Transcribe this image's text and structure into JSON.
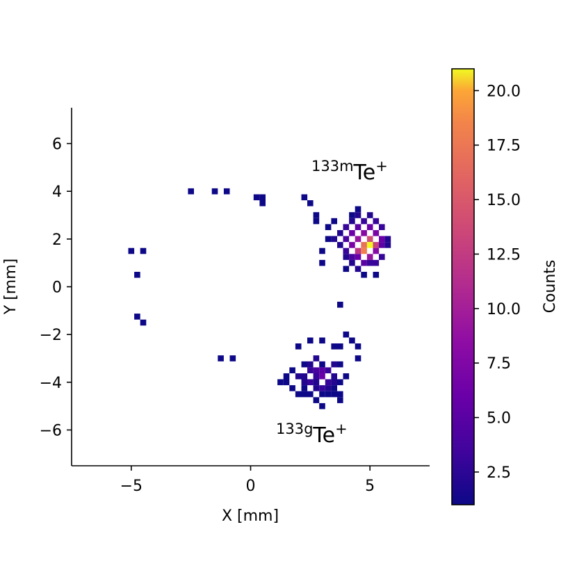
{
  "chart_data": {
    "type": "heatmap",
    "title": "",
    "xlabel": "X [mm]",
    "ylabel": "Y [mm]",
    "xlim": [
      -7.5,
      7.5
    ],
    "ylim": [
      -7.5,
      7.5
    ],
    "bin_size_mm": 0.5,
    "xticks": [
      -5,
      0,
      5
    ],
    "xtick_labels": [
      "−5",
      "0",
      "5"
    ],
    "yticks": [
      -6,
      -4,
      -2,
      0,
      2,
      4,
      6
    ],
    "ytick_labels": [
      "−6",
      "−4",
      "−2",
      "0",
      "2",
      "4",
      "6"
    ],
    "grid": false,
    "colormap": "plasma",
    "colorbar": {
      "label": "Counts",
      "range": [
        1,
        21
      ],
      "ticks": [
        2.5,
        5.0,
        7.5,
        10.0,
        12.5,
        15.0,
        17.5,
        20.0
      ],
      "tick_labels": [
        "2.5",
        "5.0",
        "7.5",
        "10.0",
        "12.5",
        "15.0",
        "17.5",
        "20.0"
      ]
    },
    "annotations": [
      {
        "id": "annot-133m",
        "mass": "133",
        "state": "m",
        "element": "Te",
        "charge": "+",
        "x": 2.4,
        "y": 4.7
      },
      {
        "id": "annot-133g",
        "mass": "133",
        "state": "g",
        "element": "Te",
        "charge": "+",
        "x": 1.0,
        "y": -6.3
      }
    ],
    "bins": [
      {
        "x": -2.5,
        "y": 4.0,
        "count": 1
      },
      {
        "x": -1.5,
        "y": 4.0,
        "count": 1
      },
      {
        "x": -1.0,
        "y": 4.0,
        "count": 1
      },
      {
        "x": 0.25,
        "y": 3.75,
        "count": 1
      },
      {
        "x": 0.5,
        "y": 3.75,
        "count": 1
      },
      {
        "x": 0.5,
        "y": 3.5,
        "count": 1
      },
      {
        "x": 2.25,
        "y": 3.75,
        "count": 1
      },
      {
        "x": 2.5,
        "y": 3.5,
        "count": 1
      },
      {
        "x": 2.75,
        "y": 3.0,
        "count": 1
      },
      {
        "x": 2.75,
        "y": 2.75,
        "count": 1
      },
      {
        "x": -5.0,
        "y": 1.5,
        "count": 1
      },
      {
        "x": -4.5,
        "y": 1.5,
        "count": 1
      },
      {
        "x": -4.75,
        "y": 0.5,
        "count": 1
      },
      {
        "x": -4.75,
        "y": -1.25,
        "count": 1
      },
      {
        "x": -4.5,
        "y": -1.5,
        "count": 1
      },
      {
        "x": -1.25,
        "y": -3.0,
        "count": 1
      },
      {
        "x": -0.75,
        "y": -3.0,
        "count": 1
      },
      {
        "x": 3.75,
        "y": -0.75,
        "count": 1
      },
      {
        "x": 3.25,
        "y": 2.5,
        "count": 1
      },
      {
        "x": 3.25,
        "y": 2.0,
        "count": 1
      },
      {
        "x": 3.0,
        "y": 1.5,
        "count": 1
      },
      {
        "x": 3.0,
        "y": 1.0,
        "count": 1
      },
      {
        "x": 3.5,
        "y": 2.75,
        "count": 1
      },
      {
        "x": 3.5,
        "y": 2.0,
        "count": 2
      },
      {
        "x": 3.75,
        "y": 2.25,
        "count": 2
      },
      {
        "x": 3.75,
        "y": 1.75,
        "count": 2
      },
      {
        "x": 4.0,
        "y": 2.5,
        "count": 3
      },
      {
        "x": 4.0,
        "y": 2.0,
        "count": 4
      },
      {
        "x": 4.0,
        "y": 1.5,
        "count": 3
      },
      {
        "x": 4.0,
        "y": 1.25,
        "count": 2
      },
      {
        "x": 4.0,
        "y": 0.75,
        "count": 1
      },
      {
        "x": 4.25,
        "y": 2.75,
        "count": 2
      },
      {
        "x": 4.25,
        "y": 2.25,
        "count": 6
      },
      {
        "x": 4.25,
        "y": 1.75,
        "count": 7
      },
      {
        "x": 4.25,
        "y": 1.25,
        "count": 4
      },
      {
        "x": 4.25,
        "y": 1.0,
        "count": 2
      },
      {
        "x": 4.5,
        "y": 3.25,
        "count": 1
      },
      {
        "x": 4.5,
        "y": 3.0,
        "count": 2
      },
      {
        "x": 4.5,
        "y": 2.5,
        "count": 5
      },
      {
        "x": 4.5,
        "y": 2.0,
        "count": 9
      },
      {
        "x": 4.5,
        "y": 1.5,
        "count": 12
      },
      {
        "x": 4.5,
        "y": 1.25,
        "count": 6
      },
      {
        "x": 4.5,
        "y": 0.75,
        "count": 2
      },
      {
        "x": 4.75,
        "y": 2.75,
        "count": 3
      },
      {
        "x": 4.75,
        "y": 2.25,
        "count": 8
      },
      {
        "x": 4.75,
        "y": 1.75,
        "count": 17
      },
      {
        "x": 4.75,
        "y": 1.5,
        "count": 18
      },
      {
        "x": 4.75,
        "y": 1.0,
        "count": 5
      },
      {
        "x": 4.75,
        "y": 0.5,
        "count": 1
      },
      {
        "x": 5.0,
        "y": 3.0,
        "count": 2
      },
      {
        "x": 5.0,
        "y": 2.5,
        "count": 6
      },
      {
        "x": 5.0,
        "y": 2.0,
        "count": 14
      },
      {
        "x": 5.0,
        "y": 1.75,
        "count": 21
      },
      {
        "x": 5.0,
        "y": 1.25,
        "count": 9
      },
      {
        "x": 5.0,
        "y": 1.0,
        "count": 3
      },
      {
        "x": 5.25,
        "y": 2.75,
        "count": 3
      },
      {
        "x": 5.25,
        "y": 2.25,
        "count": 7
      },
      {
        "x": 5.25,
        "y": 1.75,
        "count": 13
      },
      {
        "x": 5.25,
        "y": 1.5,
        "count": 8
      },
      {
        "x": 5.25,
        "y": 1.0,
        "count": 3
      },
      {
        "x": 5.25,
        "y": 0.5,
        "count": 1
      },
      {
        "x": 5.5,
        "y": 2.5,
        "count": 3
      },
      {
        "x": 5.5,
        "y": 2.0,
        "count": 6
      },
      {
        "x": 5.5,
        "y": 1.75,
        "count": 5
      },
      {
        "x": 5.5,
        "y": 1.25,
        "count": 3
      },
      {
        "x": 5.75,
        "y": 2.0,
        "count": 2
      },
      {
        "x": 5.75,
        "y": 1.75,
        "count": 2
      },
      {
        "x": 4.25,
        "y": 3.0,
        "count": 1
      },
      {
        "x": 2.0,
        "y": -2.5,
        "count": 1
      },
      {
        "x": 2.5,
        "y": -2.25,
        "count": 1
      },
      {
        "x": 3.0,
        "y": -2.25,
        "count": 1
      },
      {
        "x": 3.5,
        "y": -2.5,
        "count": 1
      },
      {
        "x": 4.0,
        "y": -2.0,
        "count": 1
      },
      {
        "x": 4.25,
        "y": -2.25,
        "count": 1
      },
      {
        "x": 4.5,
        "y": -2.5,
        "count": 1
      },
      {
        "x": 3.75,
        "y": -2.5,
        "count": 1
      },
      {
        "x": 2.75,
        "y": -3.0,
        "count": 2
      },
      {
        "x": 2.25,
        "y": -3.25,
        "count": 1
      },
      {
        "x": 2.5,
        "y": -3.25,
        "count": 2
      },
      {
        "x": 3.0,
        "y": -3.25,
        "count": 1
      },
      {
        "x": 3.5,
        "y": -3.25,
        "count": 2
      },
      {
        "x": 4.5,
        "y": -3.0,
        "count": 1
      },
      {
        "x": 1.75,
        "y": -3.5,
        "count": 1
      },
      {
        "x": 2.5,
        "y": -3.5,
        "count": 3
      },
      {
        "x": 2.75,
        "y": -3.5,
        "count": 4
      },
      {
        "x": 3.0,
        "y": -3.5,
        "count": 5
      },
      {
        "x": 3.25,
        "y": -3.5,
        "count": 3
      },
      {
        "x": 3.75,
        "y": -3.25,
        "count": 1
      },
      {
        "x": 1.5,
        "y": -3.75,
        "count": 1
      },
      {
        "x": 2.0,
        "y": -3.75,
        "count": 2
      },
      {
        "x": 2.25,
        "y": -3.75,
        "count": 2
      },
      {
        "x": 2.75,
        "y": -3.75,
        "count": 3
      },
      {
        "x": 3.0,
        "y": -3.75,
        "count": 6
      },
      {
        "x": 3.5,
        "y": -3.75,
        "count": 2
      },
      {
        "x": 4.0,
        "y": -3.75,
        "count": 1
      },
      {
        "x": 1.25,
        "y": -4.0,
        "count": 1
      },
      {
        "x": 1.5,
        "y": -4.0,
        "count": 1
      },
      {
        "x": 2.25,
        "y": -4.0,
        "count": 2
      },
      {
        "x": 2.5,
        "y": -4.0,
        "count": 3
      },
      {
        "x": 2.75,
        "y": -4.0,
        "count": 2
      },
      {
        "x": 3.25,
        "y": -4.0,
        "count": 3
      },
      {
        "x": 3.5,
        "y": -4.0,
        "count": 2
      },
      {
        "x": 3.75,
        "y": -4.0,
        "count": 1
      },
      {
        "x": 1.75,
        "y": -4.25,
        "count": 1
      },
      {
        "x": 2.25,
        "y": -4.25,
        "count": 1
      },
      {
        "x": 2.75,
        "y": -4.25,
        "count": 2
      },
      {
        "x": 3.0,
        "y": -4.25,
        "count": 3
      },
      {
        "x": 3.25,
        "y": -4.25,
        "count": 2
      },
      {
        "x": 3.5,
        "y": -4.25,
        "count": 1
      },
      {
        "x": 2.0,
        "y": -4.5,
        "count": 1
      },
      {
        "x": 2.25,
        "y": -4.5,
        "count": 1
      },
      {
        "x": 2.5,
        "y": -4.5,
        "count": 1
      },
      {
        "x": 3.0,
        "y": -4.5,
        "count": 1
      },
      {
        "x": 3.25,
        "y": -4.5,
        "count": 1
      },
      {
        "x": 3.5,
        "y": -4.5,
        "count": 1
      },
      {
        "x": 3.75,
        "y": -4.5,
        "count": 1
      },
      {
        "x": 2.75,
        "y": -4.75,
        "count": 1
      },
      {
        "x": 3.75,
        "y": -4.75,
        "count": 1
      },
      {
        "x": 3.0,
        "y": -5.0,
        "count": 1
      }
    ]
  }
}
